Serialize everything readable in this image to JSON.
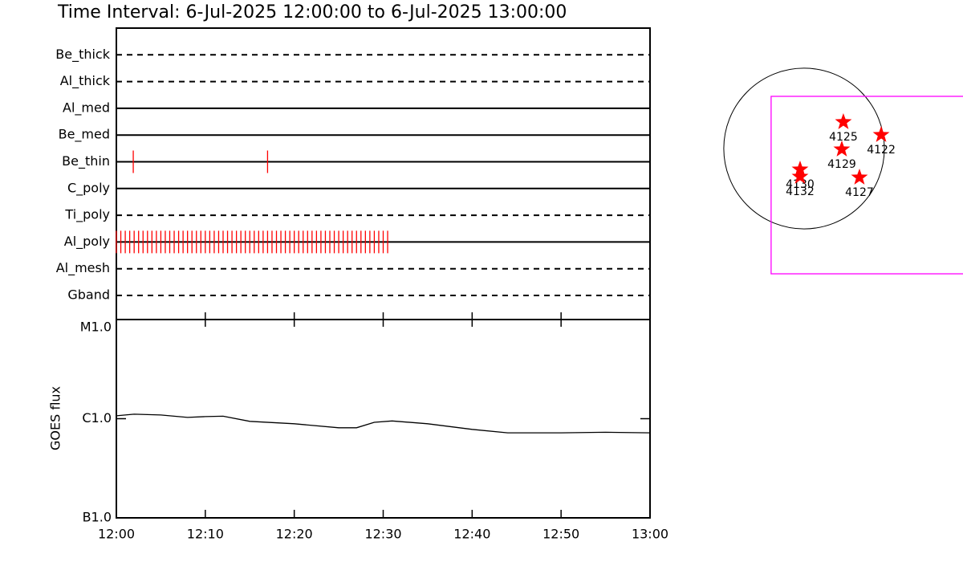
{
  "chart_data": [
    {
      "type": "timeline",
      "title": "Time Interval:  6-Jul-2025 12:00:00 to  6-Jul-2025 13:00:00",
      "xlim": [
        0,
        60
      ],
      "event_color": "#ff0000",
      "series": [
        {
          "name": "Be_thick",
          "style": "dashed",
          "times": []
        },
        {
          "name": "Al_thick",
          "style": "dashed",
          "times": []
        },
        {
          "name": "Al_med",
          "style": "solid",
          "times": []
        },
        {
          "name": "Be_med",
          "style": "solid",
          "times": []
        },
        {
          "name": "Be_thin",
          "style": "solid",
          "times": [
            1.9,
            17
          ]
        },
        {
          "name": "C_poly",
          "style": "solid",
          "times": []
        },
        {
          "name": "Ti_poly",
          "style": "dashed",
          "times": []
        },
        {
          "name": "Al_poly",
          "style": "solid",
          "times": [
            0,
            0.5,
            1,
            1.5,
            2,
            2.5,
            3,
            3.5,
            4,
            4.5,
            5,
            5.5,
            6,
            6.5,
            7,
            7.5,
            8,
            8.5,
            9,
            9.5,
            10,
            10.5,
            11,
            11.5,
            12,
            12.5,
            13,
            13.5,
            14,
            14.5,
            15,
            15.5,
            16,
            16.5,
            17,
            17.5,
            18,
            18.5,
            19,
            19.5,
            20,
            20.5,
            21,
            21.5,
            22,
            22.5,
            23,
            23.5,
            24,
            24.5,
            25,
            25.5,
            26,
            26.5,
            27,
            27.5,
            28,
            28.5,
            29,
            29.5,
            30,
            30.5
          ]
        },
        {
          "name": "Al_mesh",
          "style": "dashed",
          "times": []
        },
        {
          "name": "Gband",
          "style": "dashed",
          "times": []
        }
      ]
    },
    {
      "type": "line",
      "ylabel": "GOES flux",
      "log": true,
      "color": "#000000",
      "x": [
        0,
        2,
        5,
        8,
        10,
        12,
        15,
        20,
        25,
        27,
        29,
        31,
        35,
        40,
        44,
        50,
        55,
        60
      ],
      "values": [
        1.07e-06,
        1.11e-06,
        1.09e-06,
        1.03e-06,
        1.05e-06,
        1.06e-06,
        9.4e-07,
        8.9e-07,
        8.1e-07,
        8.1e-07,
        9.2e-07,
        9.5e-07,
        8.9e-07,
        7.8e-07,
        7.2e-07,
        7.2e-07,
        7.3e-07,
        7.2e-07
      ],
      "xlim": [
        0,
        60
      ],
      "xticks": [
        {
          "value": 0,
          "label": "12:00"
        },
        {
          "value": 10,
          "label": "12:10"
        },
        {
          "value": 20,
          "label": "12:20"
        },
        {
          "value": 30,
          "label": "12:30"
        },
        {
          "value": 40,
          "label": "12:40"
        },
        {
          "value": 50,
          "label": "12:50"
        },
        {
          "value": 60,
          "label": "13:00"
        }
      ],
      "ylim": [
        1e-07,
        1e-05
      ],
      "yticks": [
        {
          "value": 1e-05,
          "label": "M1.0"
        },
        {
          "value": 1e-06,
          "label": "C1.0"
        },
        {
          "value": 1e-07,
          "label": "B1.0"
        }
      ]
    },
    {
      "type": "map",
      "xlim": [
        -1170,
        1900
      ],
      "ylim": [
        -4944,
        1776
      ],
      "radius": 960,
      "box": {
        "x": [
          -394,
          2000
        ],
        "y": [
          -1498,
          624
        ],
        "color": "#ff00ff"
      },
      "marker_color": "#ff0000",
      "x": [
        470,
        922,
        451,
        -48,
        -48,
        662
      ],
      "y": [
        317,
        163,
        -10,
        -250,
        -336,
        -346
      ],
      "labels": [
        "4125",
        "4122",
        "4129",
        "4130",
        "4132",
        "4127"
      ]
    }
  ]
}
